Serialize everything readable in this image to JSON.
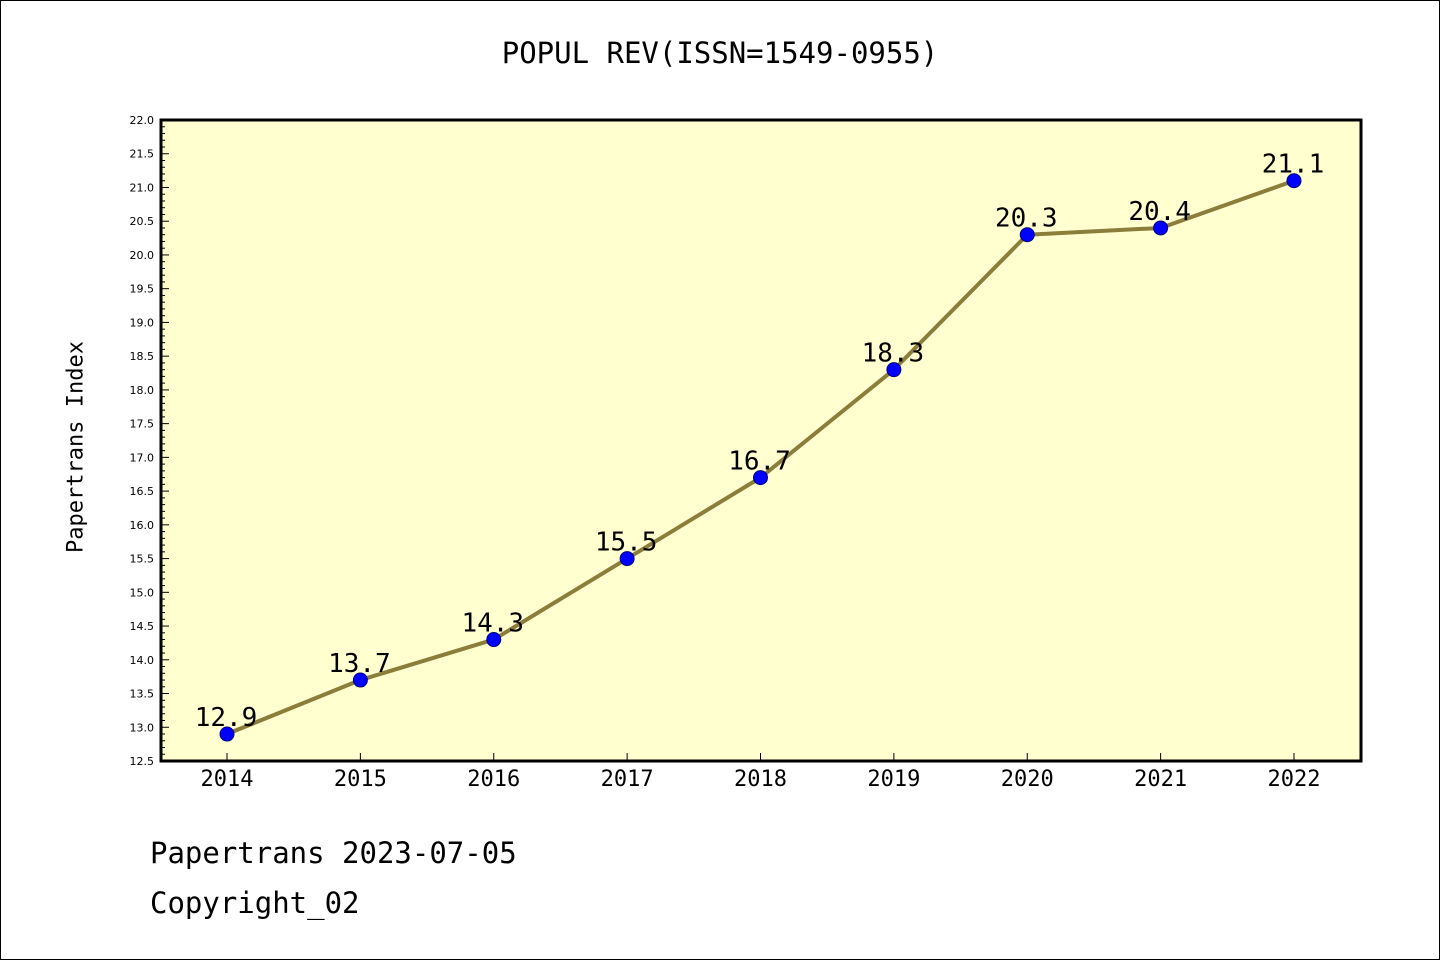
{
  "chart_data": {
    "type": "line",
    "title": "POPUL REV(ISSN=1549-0955)",
    "xlabel": "",
    "ylabel": "Papertrans Index",
    "x": [
      "2014",
      "2015",
      "2016",
      "2017",
      "2018",
      "2019",
      "2020",
      "2021",
      "2022"
    ],
    "series": [
      {
        "values": [
          12.9,
          13.7,
          14.3,
          15.5,
          16.7,
          18.3,
          20.3,
          20.4,
          21.1
        ],
        "data_labels": [
          "12.9",
          "13.7",
          "14.3",
          "15.5",
          "16.7",
          "18.3",
          "20.3",
          "20.4",
          "21.1"
        ]
      }
    ],
    "ylim": [
      12.5,
      22.0
    ],
    "y_ticks": [
      "12.5",
      "13.0",
      "13.5",
      "14.0",
      "14.5",
      "15.0",
      "15.5",
      "16.0",
      "16.5",
      "17.0",
      "17.5",
      "18.0",
      "18.5",
      "19.0",
      "19.5",
      "20.0",
      "20.5",
      "21.0",
      "21.5",
      "22.0"
    ],
    "grid": false,
    "legend": "none",
    "colors": {
      "plot_background": "#ffffd0",
      "line": "#8b7d3a",
      "marker": "#0000ff",
      "marker_edge": "#000080"
    }
  },
  "footer": {
    "line1": "Papertrans 2023-07-05",
    "line2": "Copyright_02"
  }
}
